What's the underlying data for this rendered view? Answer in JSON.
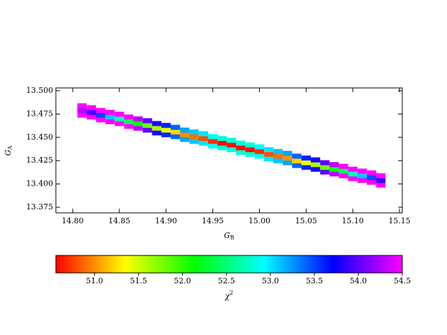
{
  "chart_data": {
    "type": "heatmap",
    "xlabel": {
      "main": "G",
      "sub": "B"
    },
    "ylabel": {
      "main": "G",
      "sub": "A"
    },
    "colorbar_label": {
      "main": "χ",
      "sup": "2"
    },
    "colormap": "hsv",
    "clim": [
      50.56,
      54.5
    ],
    "xlim": [
      14.782,
      15.153
    ],
    "ylim": [
      13.369,
      13.503
    ],
    "xticks": [
      {
        "value": 14.8,
        "label": "14.80"
      },
      {
        "value": 14.85,
        "label": "14.85"
      },
      {
        "value": 14.9,
        "label": "14.90"
      },
      {
        "value": 14.95,
        "label": "14.95"
      },
      {
        "value": 15.0,
        "label": "15.00"
      },
      {
        "value": 15.05,
        "label": "15.05"
      },
      {
        "value": 15.1,
        "label": "15.10"
      },
      {
        "value": 15.15,
        "label": "15.15"
      }
    ],
    "yticks": [
      {
        "value": 13.375,
        "label": "13.375"
      },
      {
        "value": 13.4,
        "label": "13.400"
      },
      {
        "value": 13.425,
        "label": "13.425"
      },
      {
        "value": 13.45,
        "label": "13.450"
      },
      {
        "value": 13.475,
        "label": "13.475"
      },
      {
        "value": 13.5,
        "label": "13.500"
      }
    ],
    "cticks": [
      {
        "value": 51,
        "label": "51.0"
      },
      {
        "value": 51.5,
        "label": "51.5"
      },
      {
        "value": 52,
        "label": "52.0"
      },
      {
        "value": 52.5,
        "label": "52.5"
      },
      {
        "value": 53,
        "label": "53.0"
      },
      {
        "value": 53.5,
        "label": "53.5"
      },
      {
        "value": 54,
        "label": "54.0"
      },
      {
        "value": 54.5,
        "label": "54.5"
      }
    ],
    "x": [
      14.81,
      14.81,
      14.81,
      14.82,
      14.82,
      14.82,
      14.83,
      14.83,
      14.83,
      14.84,
      14.84,
      14.84,
      14.85,
      14.85,
      14.85,
      14.86,
      14.86,
      14.86,
      14.87,
      14.87,
      14.87,
      14.88,
      14.88,
      14.88,
      14.89,
      14.89,
      14.89,
      14.9,
      14.9,
      14.9,
      14.91,
      14.91,
      14.91,
      14.92,
      14.92,
      14.92,
      14.93,
      14.93,
      14.93,
      14.94,
      14.94,
      14.94,
      14.95,
      14.95,
      14.95,
      14.96,
      14.96,
      14.96,
      14.97,
      14.97,
      14.97,
      14.98,
      14.98,
      14.98,
      14.99,
      14.99,
      14.99,
      15.0,
      15.0,
      15.0,
      15.01,
      15.01,
      15.01,
      15.02,
      15.02,
      15.02,
      15.03,
      15.03,
      15.03,
      15.04,
      15.04,
      15.04,
      15.05,
      15.05,
      15.05,
      15.06,
      15.06,
      15.06,
      15.07,
      15.07,
      15.07,
      15.08,
      15.08,
      15.08,
      15.09,
      15.09,
      15.09,
      15.1,
      15.1,
      15.1,
      15.11,
      15.11,
      15.11,
      15.12,
      15.12,
      15.12,
      15.13,
      15.13,
      15.13
    ],
    "y": [
      13.474,
      13.479,
      13.484,
      13.472,
      13.477,
      13.482,
      13.469,
      13.474,
      13.479,
      13.467,
      13.472,
      13.477,
      13.465,
      13.47,
      13.475,
      13.462,
      13.467,
      13.472,
      13.46,
      13.465,
      13.47,
      13.458,
      13.463,
      13.468,
      13.455,
      13.46,
      13.465,
      13.453,
      13.458,
      13.463,
      13.451,
      13.456,
      13.461,
      13.448,
      13.453,
      13.458,
      13.446,
      13.451,
      13.456,
      13.444,
      13.449,
      13.454,
      13.441,
      13.446,
      13.451,
      13.439,
      13.444,
      13.449,
      13.437,
      13.442,
      13.447,
      13.434,
      13.439,
      13.444,
      13.432,
      13.437,
      13.442,
      13.43,
      13.435,
      13.44,
      13.427,
      13.432,
      13.437,
      13.425,
      13.43,
      13.435,
      13.423,
      13.428,
      13.433,
      13.42,
      13.425,
      13.43,
      13.418,
      13.423,
      13.428,
      13.416,
      13.421,
      13.426,
      13.413,
      13.418,
      13.423,
      13.411,
      13.416,
      13.421,
      13.409,
      13.414,
      13.419,
      13.406,
      13.411,
      13.416,
      13.404,
      13.409,
      13.414,
      13.402,
      13.407,
      13.412,
      13.399,
      13.404,
      13.409
    ],
    "values": [
      54.5,
      54.3,
      54.5,
      54.5,
      53.9,
      54.5,
      54.5,
      53.5,
      54.5,
      54.5,
      53.1,
      54.5,
      54.5,
      52.7,
      54.5,
      54.5,
      52.4,
      54.5,
      54.3,
      52.1,
      54.3,
      54.0,
      51.8,
      54.0,
      53.8,
      51.6,
      53.8,
      53.6,
      51.4,
      53.6,
      53.4,
      51.2,
      53.4,
      53.2,
      51.0,
      53.2,
      53.1,
      50.9,
      53.1,
      53.0,
      50.8,
      53.0,
      52.9,
      50.7,
      52.9,
      52.8,
      50.6,
      52.8,
      52.8,
      50.6,
      52.8,
      52.8,
      50.6,
      52.8,
      52.8,
      50.6,
      52.8,
      52.9,
      50.7,
      52.9,
      53.0,
      50.8,
      53.0,
      53.1,
      50.9,
      53.1,
      53.2,
      51.0,
      53.2,
      53.4,
      51.2,
      53.4,
      53.6,
      51.4,
      53.6,
      53.8,
      51.6,
      53.8,
      54.0,
      51.8,
      54.0,
      54.3,
      52.1,
      54.3,
      54.5,
      52.4,
      54.5,
      54.5,
      52.7,
      54.5,
      54.5,
      53.1,
      54.5,
      54.5,
      53.5,
      54.5,
      54.5,
      53.9,
      54.5
    ]
  }
}
